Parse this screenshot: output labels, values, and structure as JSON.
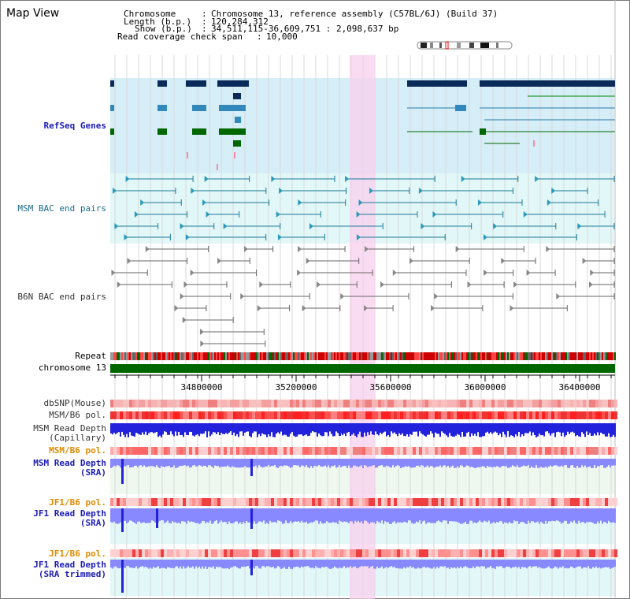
{
  "title": "Map View",
  "info": {
    "chromosome_label": "Chromosome",
    "chromosome_value": "Chromosome 13, reference assembly (C57BL/6J) (Build 37)",
    "length_label": "Length (b.p.)",
    "length_value": "120,284,312",
    "show_label": "Show (b.p.)",
    "show_value": "34,511,115-36,609,751 : 2,098,637 bp",
    "coverage_label": "Read coverage check span",
    "coverage_value": "10,000"
  },
  "tracks": {
    "refseq": "RefSeq Genes",
    "msm_bac": "MSM BAC end pairs",
    "b6n_bac": "B6N BAC end pairs",
    "repeat": "Repeat",
    "chromosome": "chromosome 13",
    "dbsnp": "dbSNP(Mouse)",
    "msm_b6_pol": "MSM/B6 pol.",
    "msm_rd_cap_1": "MSM Read Depth",
    "msm_rd_cap_2": "(Capillary)",
    "msm_b6_pol2": "MSM/B6 pol.",
    "msm_rd_sra_1": "MSM Read Depth",
    "msm_rd_sra_2": "(SRA)",
    "jf1_b6_pol": "JF1/B6 pol.",
    "jf1_rd_sra_1": "JF1 Read Depth",
    "jf1_rd_sra_2": "(SRA)",
    "jf1_b6_pol2": "JF1/B6 pol.",
    "jf1_rd_trim_1": "JF1 Read Depth",
    "jf1_rd_trim_2": "(SRA trimmed)"
  },
  "axis_ticks": [
    "34800000",
    "35200000",
    "35600000",
    "36000000",
    "36400000"
  ],
  "colors": {
    "refseq_bg": "#d6eef8",
    "bac_bg": "#e2f7f7",
    "highlight": "#f8d8f0",
    "chromosome_bar": "#006600",
    "depth_blue": "#2222dd",
    "depth_light": "#8888ff"
  }
}
